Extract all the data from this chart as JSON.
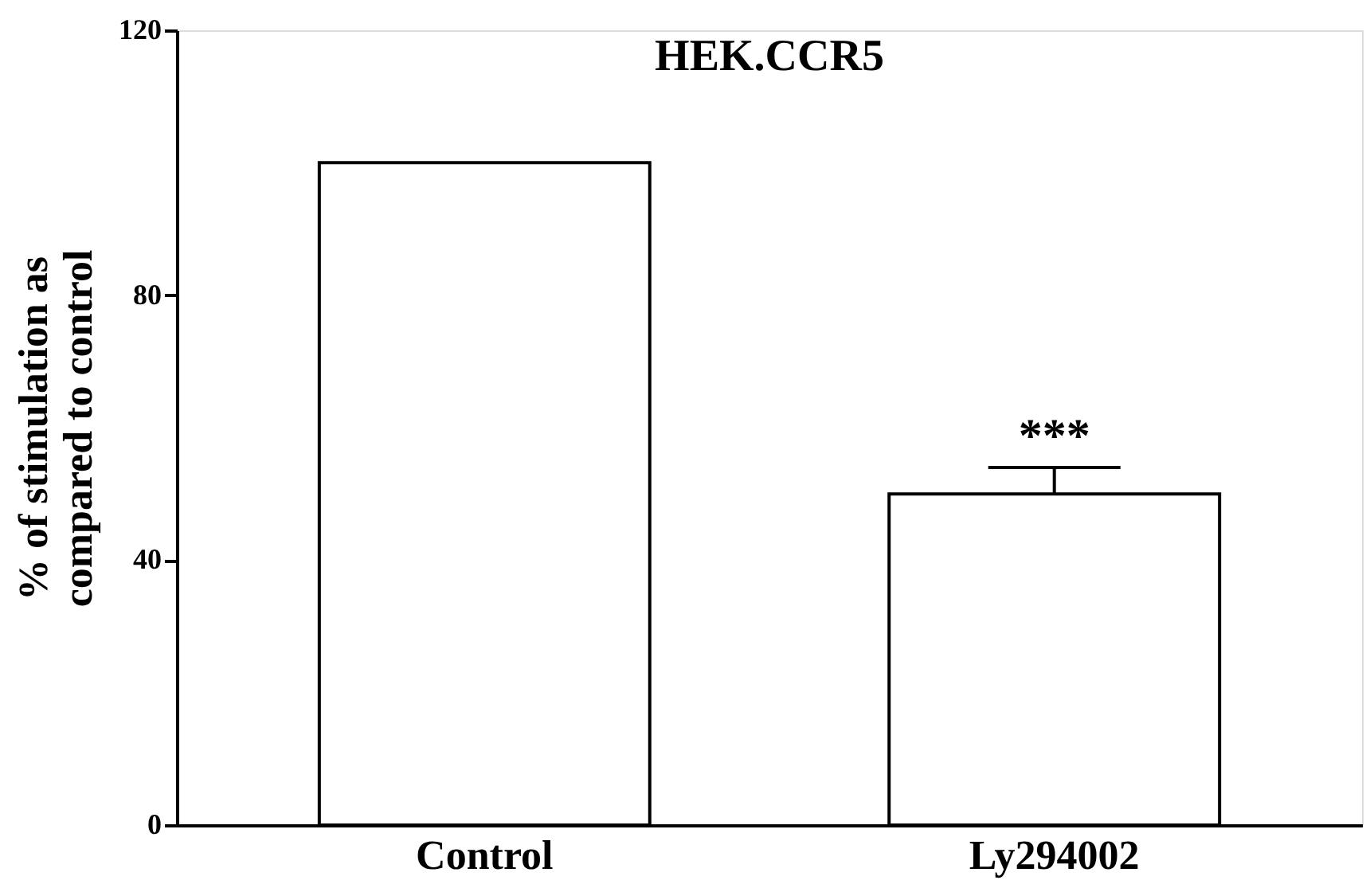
{
  "chart_data": {
    "type": "bar",
    "title": "HEK.CCR5",
    "ylabel": "% of stimulation as\ncompared to control",
    "categories": [
      "Control",
      "Ly294002"
    ],
    "values": [
      100,
      50
    ],
    "colors": [
      "#ffffff",
      "#ffffff"
    ],
    "errors": [
      null,
      [
        50,
        54
      ]
    ],
    "annotations": [
      {
        "text": "***",
        "x": "Ly294002",
        "y": 54
      }
    ],
    "ylim": [
      0,
      120
    ],
    "yticks": [
      0,
      40,
      80,
      120
    ],
    "grid": false
  }
}
